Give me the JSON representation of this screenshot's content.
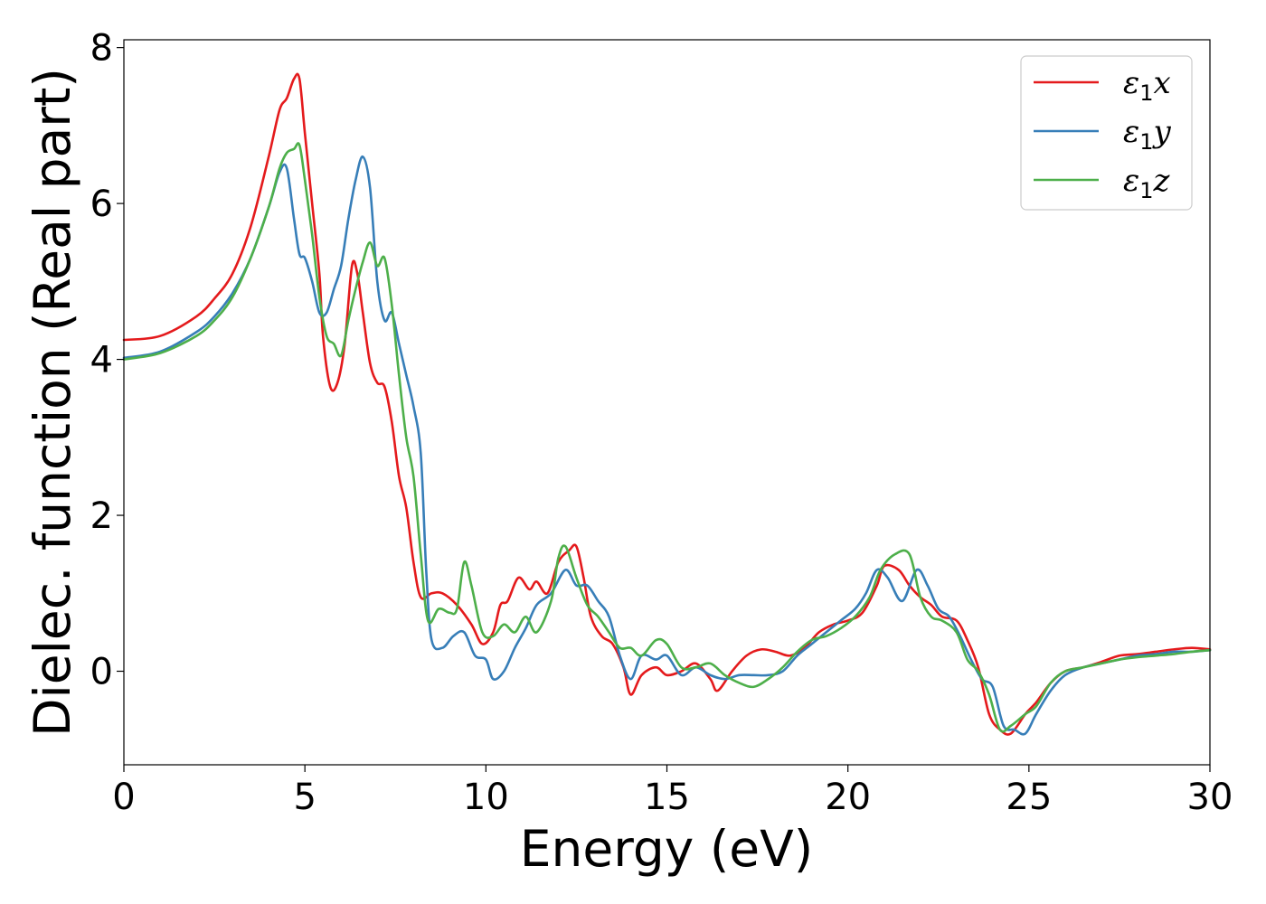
{
  "chart_data": {
    "type": "line",
    "xlabel": "Energy (eV)",
    "ylabel": "Dielec. function (Real part)",
    "xlim": [
      0,
      30
    ],
    "ylim": [
      -1.2,
      8.1
    ],
    "xticks": [
      0,
      5,
      10,
      15,
      20,
      25,
      30
    ],
    "yticks": [
      0,
      2,
      4,
      6,
      8
    ],
    "grid": false,
    "legend_position": "top-right",
    "series": [
      {
        "name": "ε1x",
        "name_main": "ε",
        "name_sub": "1",
        "name_var": "x",
        "color": "#e41a1c",
        "points": [
          [
            0,
            4.25
          ],
          [
            1,
            4.3
          ],
          [
            2,
            4.55
          ],
          [
            2.5,
            4.78
          ],
          [
            3,
            5.1
          ],
          [
            3.5,
            5.7
          ],
          [
            4,
            6.6
          ],
          [
            4.3,
            7.2
          ],
          [
            4.5,
            7.35
          ],
          [
            4.7,
            7.6
          ],
          [
            4.85,
            7.6
          ],
          [
            5,
            6.9
          ],
          [
            5.2,
            6.0
          ],
          [
            5.4,
            5.1
          ],
          [
            5.5,
            4.3
          ],
          [
            5.7,
            3.65
          ],
          [
            5.9,
            3.7
          ],
          [
            6.1,
            4.2
          ],
          [
            6.3,
            5.2
          ],
          [
            6.45,
            5.1
          ],
          [
            6.6,
            4.6
          ],
          [
            6.8,
            3.95
          ],
          [
            7,
            3.7
          ],
          [
            7.2,
            3.65
          ],
          [
            7.4,
            3.2
          ],
          [
            7.6,
            2.5
          ],
          [
            7.8,
            2.1
          ],
          [
            8.0,
            1.4
          ],
          [
            8.2,
            0.95
          ],
          [
            8.5,
            1.0
          ],
          [
            8.8,
            1.0
          ],
          [
            9.2,
            0.85
          ],
          [
            9.6,
            0.6
          ],
          [
            9.9,
            0.35
          ],
          [
            10.2,
            0.5
          ],
          [
            10.4,
            0.85
          ],
          [
            10.6,
            0.9
          ],
          [
            10.9,
            1.2
          ],
          [
            11.2,
            1.05
          ],
          [
            11.4,
            1.15
          ],
          [
            11.7,
            1.0
          ],
          [
            12.0,
            1.4
          ],
          [
            12.3,
            1.55
          ],
          [
            12.5,
            1.6
          ],
          [
            12.7,
            1.2
          ],
          [
            12.9,
            0.7
          ],
          [
            13.2,
            0.45
          ],
          [
            13.5,
            0.35
          ],
          [
            13.8,
            0.05
          ],
          [
            14.0,
            -0.3
          ],
          [
            14.3,
            -0.05
          ],
          [
            14.7,
            0.05
          ],
          [
            15.0,
            -0.05
          ],
          [
            15.4,
            0.0
          ],
          [
            15.8,
            0.1
          ],
          [
            16.2,
            -0.1
          ],
          [
            16.4,
            -0.25
          ],
          [
            16.8,
            0.0
          ],
          [
            17.2,
            0.2
          ],
          [
            17.6,
            0.28
          ],
          [
            18.0,
            0.25
          ],
          [
            18.4,
            0.2
          ],
          [
            18.8,
            0.3
          ],
          [
            19.2,
            0.5
          ],
          [
            19.6,
            0.6
          ],
          [
            20.0,
            0.65
          ],
          [
            20.4,
            0.75
          ],
          [
            20.8,
            1.1
          ],
          [
            21.0,
            1.35
          ],
          [
            21.4,
            1.3
          ],
          [
            21.7,
            1.1
          ],
          [
            22.0,
            0.95
          ],
          [
            22.3,
            0.85
          ],
          [
            22.6,
            0.7
          ],
          [
            23.0,
            0.65
          ],
          [
            23.3,
            0.4
          ],
          [
            23.6,
            0.05
          ],
          [
            23.9,
            -0.55
          ],
          [
            24.2,
            -0.75
          ],
          [
            24.5,
            -0.8
          ],
          [
            24.9,
            -0.55
          ],
          [
            25.2,
            -0.4
          ],
          [
            25.6,
            -0.15
          ],
          [
            26.0,
            0.0
          ],
          [
            26.5,
            0.05
          ],
          [
            27.0,
            0.12
          ],
          [
            27.5,
            0.2
          ],
          [
            28.0,
            0.22
          ],
          [
            28.5,
            0.25
          ],
          [
            29.0,
            0.28
          ],
          [
            29.5,
            0.3
          ],
          [
            30.0,
            0.28
          ]
        ]
      },
      {
        "name": "ε1y",
        "name_main": "ε",
        "name_sub": "1",
        "name_var": "y",
        "color": "#377eb8",
        "points": [
          [
            0,
            4.02
          ],
          [
            1,
            4.1
          ],
          [
            2,
            4.35
          ],
          [
            2.5,
            4.55
          ],
          [
            3,
            4.85
          ],
          [
            3.5,
            5.3
          ],
          [
            4,
            5.95
          ],
          [
            4.3,
            6.4
          ],
          [
            4.5,
            6.45
          ],
          [
            4.7,
            5.8
          ],
          [
            4.85,
            5.35
          ],
          [
            5,
            5.3
          ],
          [
            5.2,
            5.0
          ],
          [
            5.4,
            4.6
          ],
          [
            5.6,
            4.6
          ],
          [
            5.8,
            4.9
          ],
          [
            6.0,
            5.2
          ],
          [
            6.2,
            5.8
          ],
          [
            6.4,
            6.3
          ],
          [
            6.6,
            6.6
          ],
          [
            6.8,
            6.2
          ],
          [
            7.0,
            5.0
          ],
          [
            7.2,
            4.5
          ],
          [
            7.4,
            4.6
          ],
          [
            7.6,
            4.2
          ],
          [
            7.8,
            3.8
          ],
          [
            8.0,
            3.4
          ],
          [
            8.2,
            2.8
          ],
          [
            8.35,
            1.3
          ],
          [
            8.5,
            0.4
          ],
          [
            8.8,
            0.3
          ],
          [
            9.1,
            0.45
          ],
          [
            9.4,
            0.5
          ],
          [
            9.7,
            0.2
          ],
          [
            10.0,
            0.15
          ],
          [
            10.2,
            -0.1
          ],
          [
            10.5,
            0.0
          ],
          [
            10.8,
            0.3
          ],
          [
            11.1,
            0.55
          ],
          [
            11.4,
            0.85
          ],
          [
            11.8,
            1.0
          ],
          [
            12.2,
            1.3
          ],
          [
            12.5,
            1.1
          ],
          [
            12.8,
            1.1
          ],
          [
            13.1,
            0.9
          ],
          [
            13.4,
            0.7
          ],
          [
            13.7,
            0.2
          ],
          [
            14.0,
            -0.1
          ],
          [
            14.3,
            0.2
          ],
          [
            14.7,
            0.15
          ],
          [
            15.0,
            0.2
          ],
          [
            15.4,
            -0.05
          ],
          [
            15.8,
            0.05
          ],
          [
            16.2,
            -0.05
          ],
          [
            16.6,
            -0.1
          ],
          [
            17.0,
            -0.05
          ],
          [
            17.4,
            -0.05
          ],
          [
            17.8,
            -0.05
          ],
          [
            18.2,
            0.0
          ],
          [
            18.6,
            0.2
          ],
          [
            19.0,
            0.35
          ],
          [
            19.4,
            0.5
          ],
          [
            19.8,
            0.65
          ],
          [
            20.2,
            0.8
          ],
          [
            20.5,
            1.0
          ],
          [
            20.8,
            1.3
          ],
          [
            21.1,
            1.2
          ],
          [
            21.5,
            0.9
          ],
          [
            21.9,
            1.3
          ],
          [
            22.2,
            1.1
          ],
          [
            22.5,
            0.8
          ],
          [
            22.8,
            0.7
          ],
          [
            23.1,
            0.45
          ],
          [
            23.4,
            0.15
          ],
          [
            23.7,
            -0.1
          ],
          [
            24.0,
            -0.2
          ],
          [
            24.3,
            -0.7
          ],
          [
            24.6,
            -0.75
          ],
          [
            24.9,
            -0.8
          ],
          [
            25.2,
            -0.55
          ],
          [
            25.6,
            -0.25
          ],
          [
            26.0,
            -0.05
          ],
          [
            26.5,
            0.05
          ],
          [
            27.0,
            0.1
          ],
          [
            27.5,
            0.15
          ],
          [
            28.0,
            0.2
          ],
          [
            28.5,
            0.22
          ],
          [
            29.0,
            0.25
          ],
          [
            29.5,
            0.25
          ],
          [
            30.0,
            0.27
          ]
        ]
      },
      {
        "name": "ε1z",
        "name_main": "ε",
        "name_sub": "1",
        "name_var": "z",
        "color": "#4daf4a",
        "points": [
          [
            0,
            4.0
          ],
          [
            1,
            4.08
          ],
          [
            2,
            4.3
          ],
          [
            2.5,
            4.5
          ],
          [
            3,
            4.8
          ],
          [
            3.5,
            5.3
          ],
          [
            4,
            5.95
          ],
          [
            4.3,
            6.45
          ],
          [
            4.5,
            6.65
          ],
          [
            4.7,
            6.7
          ],
          [
            4.85,
            6.75
          ],
          [
            5,
            6.3
          ],
          [
            5.2,
            5.6
          ],
          [
            5.4,
            4.8
          ],
          [
            5.6,
            4.3
          ],
          [
            5.8,
            4.2
          ],
          [
            6.0,
            4.05
          ],
          [
            6.2,
            4.5
          ],
          [
            6.4,
            4.9
          ],
          [
            6.6,
            5.25
          ],
          [
            6.8,
            5.5
          ],
          [
            7.0,
            5.2
          ],
          [
            7.2,
            5.3
          ],
          [
            7.4,
            4.7
          ],
          [
            7.6,
            3.8
          ],
          [
            7.8,
            3.0
          ],
          [
            8.0,
            2.5
          ],
          [
            8.2,
            1.5
          ],
          [
            8.4,
            0.65
          ],
          [
            8.7,
            0.8
          ],
          [
            9.0,
            0.75
          ],
          [
            9.2,
            0.8
          ],
          [
            9.4,
            1.4
          ],
          [
            9.6,
            1.1
          ],
          [
            9.9,
            0.5
          ],
          [
            10.2,
            0.45
          ],
          [
            10.5,
            0.6
          ],
          [
            10.8,
            0.5
          ],
          [
            11.1,
            0.7
          ],
          [
            11.4,
            0.5
          ],
          [
            11.8,
            0.9
          ],
          [
            12.0,
            1.45
          ],
          [
            12.2,
            1.6
          ],
          [
            12.5,
            1.2
          ],
          [
            12.8,
            0.85
          ],
          [
            13.1,
            0.7
          ],
          [
            13.4,
            0.5
          ],
          [
            13.7,
            0.3
          ],
          [
            14.0,
            0.3
          ],
          [
            14.3,
            0.2
          ],
          [
            14.7,
            0.4
          ],
          [
            15.0,
            0.35
          ],
          [
            15.4,
            0.05
          ],
          [
            15.8,
            0.05
          ],
          [
            16.2,
            0.1
          ],
          [
            16.6,
            -0.05
          ],
          [
            17.0,
            -0.15
          ],
          [
            17.4,
            -0.2
          ],
          [
            17.8,
            -0.1
          ],
          [
            18.2,
            0.05
          ],
          [
            18.6,
            0.25
          ],
          [
            19.0,
            0.4
          ],
          [
            19.4,
            0.45
          ],
          [
            19.8,
            0.55
          ],
          [
            20.2,
            0.7
          ],
          [
            20.6,
            0.95
          ],
          [
            20.9,
            1.3
          ],
          [
            21.3,
            1.5
          ],
          [
            21.7,
            1.5
          ],
          [
            22.0,
            0.95
          ],
          [
            22.3,
            0.7
          ],
          [
            22.6,
            0.65
          ],
          [
            23.0,
            0.5
          ],
          [
            23.3,
            0.15
          ],
          [
            23.6,
            0.0
          ],
          [
            23.9,
            -0.3
          ],
          [
            24.2,
            -0.75
          ],
          [
            24.5,
            -0.7
          ],
          [
            24.9,
            -0.55
          ],
          [
            25.2,
            -0.45
          ],
          [
            25.6,
            -0.15
          ],
          [
            26.0,
            0.0
          ],
          [
            26.5,
            0.05
          ],
          [
            27.0,
            0.1
          ],
          [
            27.5,
            0.15
          ],
          [
            28.0,
            0.18
          ],
          [
            28.5,
            0.2
          ],
          [
            29.0,
            0.22
          ],
          [
            29.5,
            0.25
          ],
          [
            30.0,
            0.27
          ]
        ]
      }
    ]
  }
}
